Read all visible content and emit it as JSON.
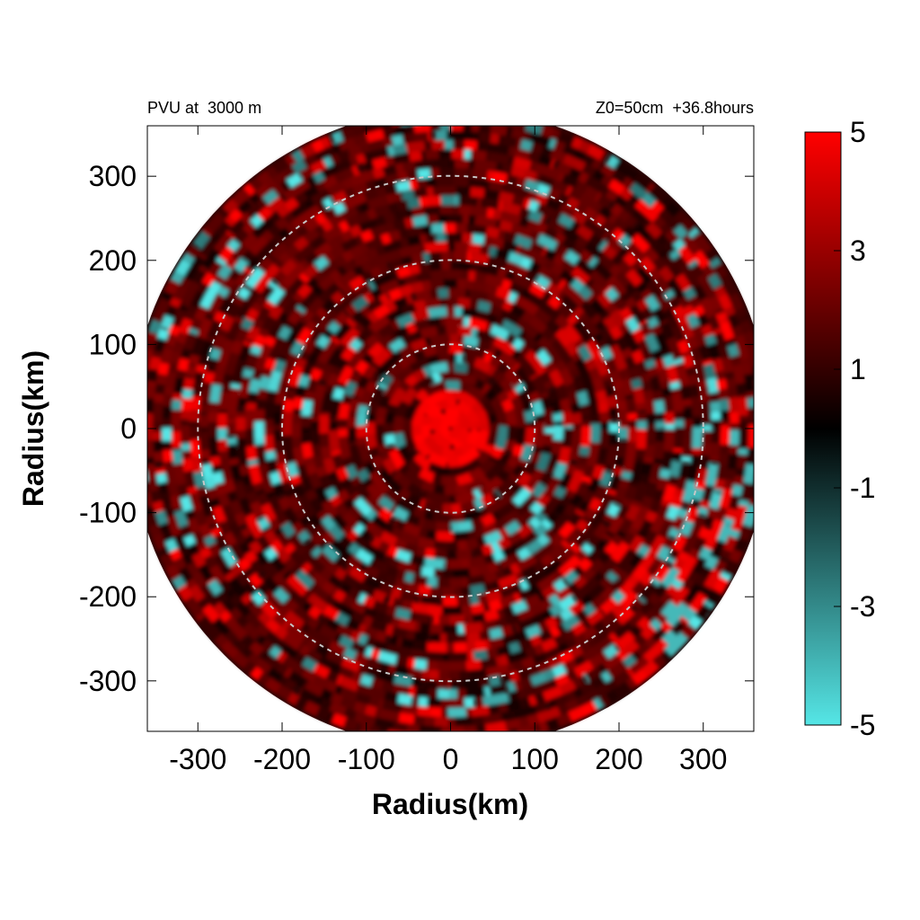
{
  "chart_data": {
    "type": "heatmap",
    "title_left": "PVU at  3000 m",
    "title_right": "Z0=50cm  +36.8hours",
    "xlabel": "Radius(km)",
    "ylabel": "Radius(km)",
    "xlim": [
      -360,
      360
    ],
    "ylim": [
      -360,
      360
    ],
    "xticks": [
      -300,
      -200,
      -100,
      0,
      100,
      200,
      300
    ],
    "yticks": [
      300,
      200,
      100,
      0,
      -100,
      -200,
      -300
    ],
    "grid": false,
    "reference_rings_km": [
      100,
      200,
      300
    ],
    "domain_radius_km": 380,
    "colorbar": {
      "range": [
        -5,
        5
      ],
      "ticks": [
        5,
        3,
        1,
        -1,
        -3,
        -5
      ],
      "colors": {
        "max": "#ff0000",
        "mid": "#000000",
        "min": "#55e6e6"
      }
    },
    "field_notes": {
      "core_value": 5,
      "core_radius_km": 50
    }
  }
}
